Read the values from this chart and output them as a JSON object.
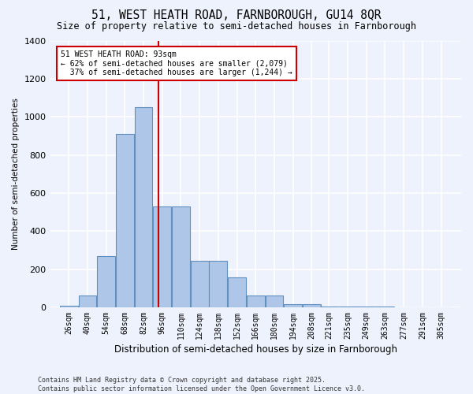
{
  "title1": "51, WEST HEATH ROAD, FARNBOROUGH, GU14 8QR",
  "title2": "Size of property relative to semi-detached houses in Farnborough",
  "xlabel": "Distribution of semi-detached houses by size in Farnborough",
  "ylabel": "Number of semi-detached properties",
  "property_label": "51 WEST HEATH ROAD: 93sqm",
  "pct_smaller": 62,
  "count_smaller": 2079,
  "pct_larger": 37,
  "count_larger": 1244,
  "bin_labels": [
    "26sqm",
    "40sqm",
    "54sqm",
    "68sqm",
    "82sqm",
    "96sqm",
    "110sqm",
    "124sqm",
    "138sqm",
    "152sqm",
    "166sqm",
    "180sqm",
    "194sqm",
    "208sqm",
    "221sqm",
    "235sqm",
    "249sqm",
    "263sqm",
    "277sqm",
    "291sqm",
    "305sqm"
  ],
  "bar_heights": [
    10,
    60,
    270,
    910,
    1050,
    530,
    530,
    245,
    245,
    155,
    60,
    60,
    15,
    15,
    5,
    5,
    2,
    2,
    0,
    0,
    0
  ],
  "bar_color": "#aec6e8",
  "bar_edge_color": "#6090c0",
  "vline_x": 93,
  "vline_color": "#cc0000",
  "bg_color": "#eef2fc",
  "grid_color": "#d8dff0",
  "footer_text": "Contains HM Land Registry data © Crown copyright and database right 2025.\nContains public sector information licensed under the Open Government Licence v3.0.",
  "ylim": [
    0,
    1400
  ],
  "yticks": [
    0,
    200,
    400,
    600,
    800,
    1000,
    1200,
    1400
  ]
}
